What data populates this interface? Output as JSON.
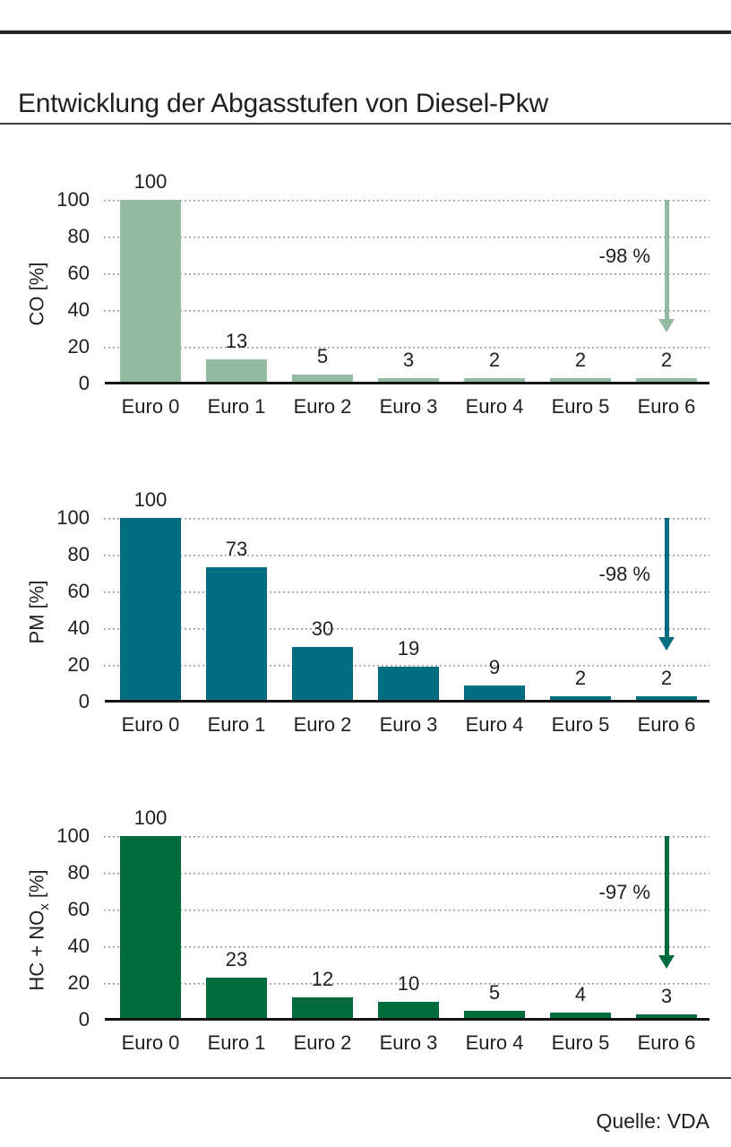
{
  "title": "Entwicklung der Abgasstufen von Diesel-Pkw",
  "source": "Quelle: VDA",
  "colors": {
    "co_bar": "#93bba4",
    "pm_bar": "#006e80",
    "hc_nox_bar": "#006b3c",
    "text": "#1f1f1f",
    "gridline": "#9c9c9c",
    "axis": "#141414",
    "rules": "#2e2e2e"
  },
  "chart_data": [
    {
      "id": "co",
      "type": "bar",
      "title": "",
      "xlabel": "",
      "ylabel": "CO [%]",
      "ylabel_segments": [
        {
          "t": "CO [%]",
          "sub": false
        }
      ],
      "categories": [
        "Euro 0",
        "Euro 1",
        "Euro 2",
        "Euro 3",
        "Euro 4",
        "Euro 5",
        "Euro 6"
      ],
      "values": [
        100,
        13,
        5,
        3,
        2,
        2,
        2
      ],
      "bar_color": "#93bba4",
      "ylim": [
        0,
        100
      ],
      "yticks": [
        0,
        20,
        40,
        60,
        80,
        100
      ],
      "grid": true,
      "legend": false,
      "annotation": {
        "label": "-98 %",
        "arrow_from": 100,
        "arrow_to": 28,
        "at_category": "Euro 6"
      }
    },
    {
      "id": "pm",
      "type": "bar",
      "title": "",
      "xlabel": "",
      "ylabel": "PM [%]",
      "ylabel_segments": [
        {
          "t": "PM [%]",
          "sub": false
        }
      ],
      "categories": [
        "Euro 0",
        "Euro 1",
        "Euro 2",
        "Euro 3",
        "Euro 4",
        "Euro 5",
        "Euro 6"
      ],
      "values": [
        100,
        73,
        30,
        19,
        9,
        2,
        2
      ],
      "bar_color": "#006e80",
      "ylim": [
        0,
        100
      ],
      "yticks": [
        0,
        20,
        40,
        60,
        80,
        100
      ],
      "grid": true,
      "legend": false,
      "annotation": {
        "label": "-98 %",
        "arrow_from": 100,
        "arrow_to": 28,
        "at_category": "Euro 6"
      }
    },
    {
      "id": "hc-nox",
      "type": "bar",
      "title": "",
      "xlabel": "",
      "ylabel": "HC + NOx [%]",
      "ylabel_segments": [
        {
          "t": "HC + NO",
          "sub": false
        },
        {
          "t": "x",
          "sub": true
        },
        {
          "t": " [%]",
          "sub": false
        }
      ],
      "categories": [
        "Euro 0",
        "Euro 1",
        "Euro 2",
        "Euro 3",
        "Euro 4",
        "Euro 5",
        "Euro 6"
      ],
      "values": [
        100,
        23,
        12,
        10,
        5,
        4,
        3
      ],
      "bar_color": "#006b3c",
      "ylim": [
        0,
        100
      ],
      "yticks": [
        0,
        20,
        40,
        60,
        80,
        100
      ],
      "grid": true,
      "legend": false,
      "annotation": {
        "label": "-97 %",
        "arrow_from": 100,
        "arrow_to": 28,
        "at_category": "Euro 6"
      }
    }
  ]
}
